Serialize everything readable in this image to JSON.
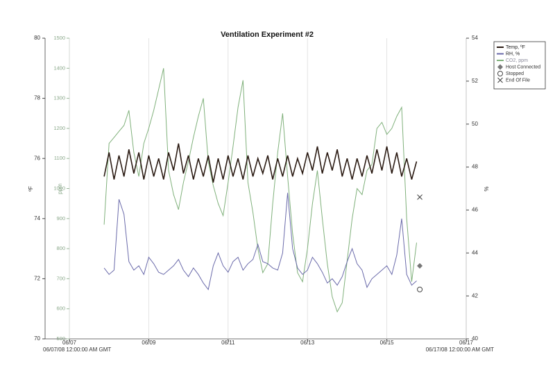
{
  "chart_data": {
    "type": "line",
    "title": "Ventilation Experiment #2",
    "ylabel": "ºF",
    "y2label": "ppm",
    "y3label": "%",
    "xlim": [
      0,
      10
    ],
    "xticks": [
      {
        "value": 0,
        "label": "06/07"
      },
      {
        "value": 2,
        "label": "06/09"
      },
      {
        "value": 4,
        "label": "06/11"
      },
      {
        "value": 6,
        "label": "06/13"
      },
      {
        "value": 8,
        "label": "06/15"
      },
      {
        "value": 10,
        "label": "06/17"
      }
    ],
    "x_range_labels": [
      "06/07/08 12:00:00 AM GMT",
      "06/17/08 12:00:00 AM GMT"
    ],
    "ylim": [
      70,
      80
    ],
    "yticks": [
      70,
      72,
      74,
      76,
      78,
      80
    ],
    "y2lim": [
      500,
      1500
    ],
    "y2ticks": [
      500,
      600,
      700,
      800,
      900,
      1000,
      1100,
      1200,
      1300,
      1400,
      1500
    ],
    "y3lim": [
      40,
      54
    ],
    "y3ticks": [
      40,
      42,
      44,
      46,
      48,
      50,
      52,
      54
    ],
    "grid": true,
    "x": [
      0.875,
      1,
      1.125,
      1.25,
      1.375,
      1.5,
      1.625,
      1.75,
      1.875,
      2,
      2.125,
      2.25,
      2.375,
      2.5,
      2.625,
      2.75,
      2.875,
      3,
      3.125,
      3.25,
      3.375,
      3.5,
      3.625,
      3.75,
      3.875,
      4,
      4.125,
      4.25,
      4.375,
      4.5,
      4.625,
      4.75,
      4.875,
      5,
      5.125,
      5.25,
      5.375,
      5.5,
      5.625,
      5.75,
      5.875,
      6,
      6.125,
      6.25,
      6.375,
      6.5,
      6.625,
      6.75,
      6.875,
      7,
      7.125,
      7.25,
      7.375,
      7.5,
      7.625,
      7.75,
      7.875,
      8,
      8.125,
      8.25,
      8.375,
      8.5,
      8.625,
      8.75
    ],
    "series": [
      {
        "name": "CO2, ppm",
        "color": "#7fb07a",
        "axis": "y2",
        "values": [
          880,
          1150,
          1170,
          1190,
          1210,
          1260,
          1120,
          1040,
          1150,
          1200,
          1260,
          1330,
          1400,
          1060,
          980,
          930,
          1020,
          1090,
          1170,
          1240,
          1300,
          1090,
          1010,
          950,
          910,
          1020,
          1140,
          1270,
          1360,
          1020,
          920,
          800,
          720,
          750,
          950,
          1120,
          1250,
          1040,
          850,
          720,
          690,
          800,
          950,
          1060,
          900,
          750,
          640,
          590,
          620,
          760,
          900,
          1000,
          980,
          1060,
          1080,
          1200,
          1220,
          1180,
          1200,
          1240,
          1270,
          900,
          690,
          820
        ]
      },
      {
        "name": "RH, %",
        "color": "#6a6aaa",
        "axis": "y3",
        "values": [
          43.3,
          43.0,
          43.2,
          46.5,
          45.8,
          43.6,
          43.2,
          43.4,
          43.0,
          43.8,
          43.5,
          43.1,
          43.0,
          43.2,
          43.4,
          43.7,
          43.2,
          42.9,
          43.3,
          43.0,
          42.6,
          42.3,
          43.4,
          44.0,
          43.4,
          43.1,
          43.6,
          43.8,
          43.2,
          43.5,
          43.7,
          44.4,
          43.6,
          43.5,
          43.3,
          43.2,
          44.0,
          46.8,
          44.2,
          43.3,
          43.0,
          43.2,
          43.8,
          43.5,
          43.1,
          42.6,
          42.8,
          42.5,
          42.9,
          43.6,
          44.2,
          43.5,
          43.2,
          42.4,
          42.8,
          43.0,
          43.2,
          43.4,
          43.0,
          43.9,
          45.6,
          43.0,
          42.5,
          42.7
        ]
      },
      {
        "name": "Temp, ºF",
        "color": "#2a1a12",
        "axis": "y",
        "values": [
          75.4,
          76.2,
          75.3,
          76.1,
          75.4,
          76.3,
          75.5,
          76.2,
          75.3,
          76.1,
          75.4,
          76.0,
          75.3,
          76.2,
          75.6,
          76.5,
          75.5,
          76.1,
          75.3,
          76.0,
          75.4,
          76.1,
          75.2,
          76.0,
          75.3,
          76.1,
          75.4,
          76.0,
          75.3,
          76.1,
          75.4,
          76.0,
          75.5,
          76.1,
          75.3,
          76.0,
          75.4,
          76.1,
          75.4,
          76.0,
          75.5,
          76.2,
          75.6,
          76.4,
          75.5,
          76.2,
          75.6,
          76.3,
          75.4,
          76.0,
          75.3,
          76.0,
          75.4,
          76.1,
          75.5,
          76.3,
          75.6,
          76.4,
          75.5,
          76.2,
          75.4,
          76.0,
          75.3,
          75.9
        ]
      }
    ],
    "markers": [
      {
        "name": "Host Connected",
        "marker": "diamond",
        "color": "#777777",
        "axis": "y3",
        "x": 8.83,
        "value": 43.4
      },
      {
        "name": "Stopped",
        "marker": "circle",
        "color": "#444444",
        "axis": "y3",
        "x": 8.83,
        "value": 42.3
      },
      {
        "name": "End Of File",
        "marker": "x",
        "color": "#444444",
        "axis": "y3",
        "x": 8.83,
        "value": 46.6
      }
    ],
    "legend_order": [
      "Temp, ºF",
      "RH, %",
      "CO2, ppm"
    ]
  }
}
